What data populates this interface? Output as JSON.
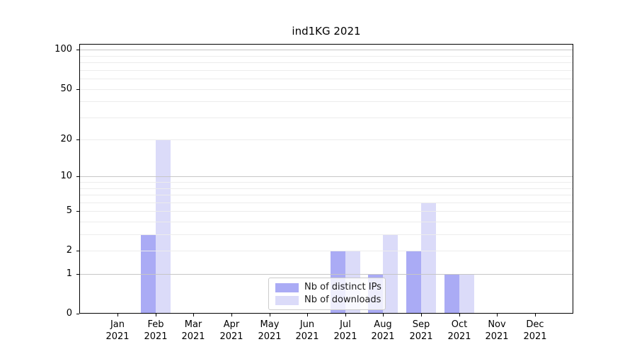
{
  "chart_data": {
    "type": "bar",
    "title": "ind1KG 2021",
    "x_tick_months": [
      "Jan",
      "Feb",
      "Mar",
      "Apr",
      "May",
      "Jun",
      "Jul",
      "Aug",
      "Sep",
      "Oct",
      "Nov",
      "Dec"
    ],
    "x_tick_year": "2021",
    "series": [
      {
        "name": "Nb of distinct IPs",
        "color": "#aaabf5",
        "values": [
          0,
          3,
          0,
          0,
          0,
          0,
          2,
          1,
          2,
          1,
          0,
          0
        ]
      },
      {
        "name": "Nb of downloads",
        "color": "#dbdbf9",
        "values": [
          0,
          20,
          0,
          0,
          0,
          0,
          2,
          3,
          6,
          1,
          0,
          0
        ]
      }
    ],
    "y_ticks": [
      0,
      1,
      2,
      5,
      10,
      20,
      50,
      100
    ],
    "y_major_gridlines": [
      1,
      10,
      100
    ],
    "y_scale": "log1p",
    "ylim": [
      0,
      111
    ],
    "grid": true,
    "legend_position": "lower-center"
  }
}
